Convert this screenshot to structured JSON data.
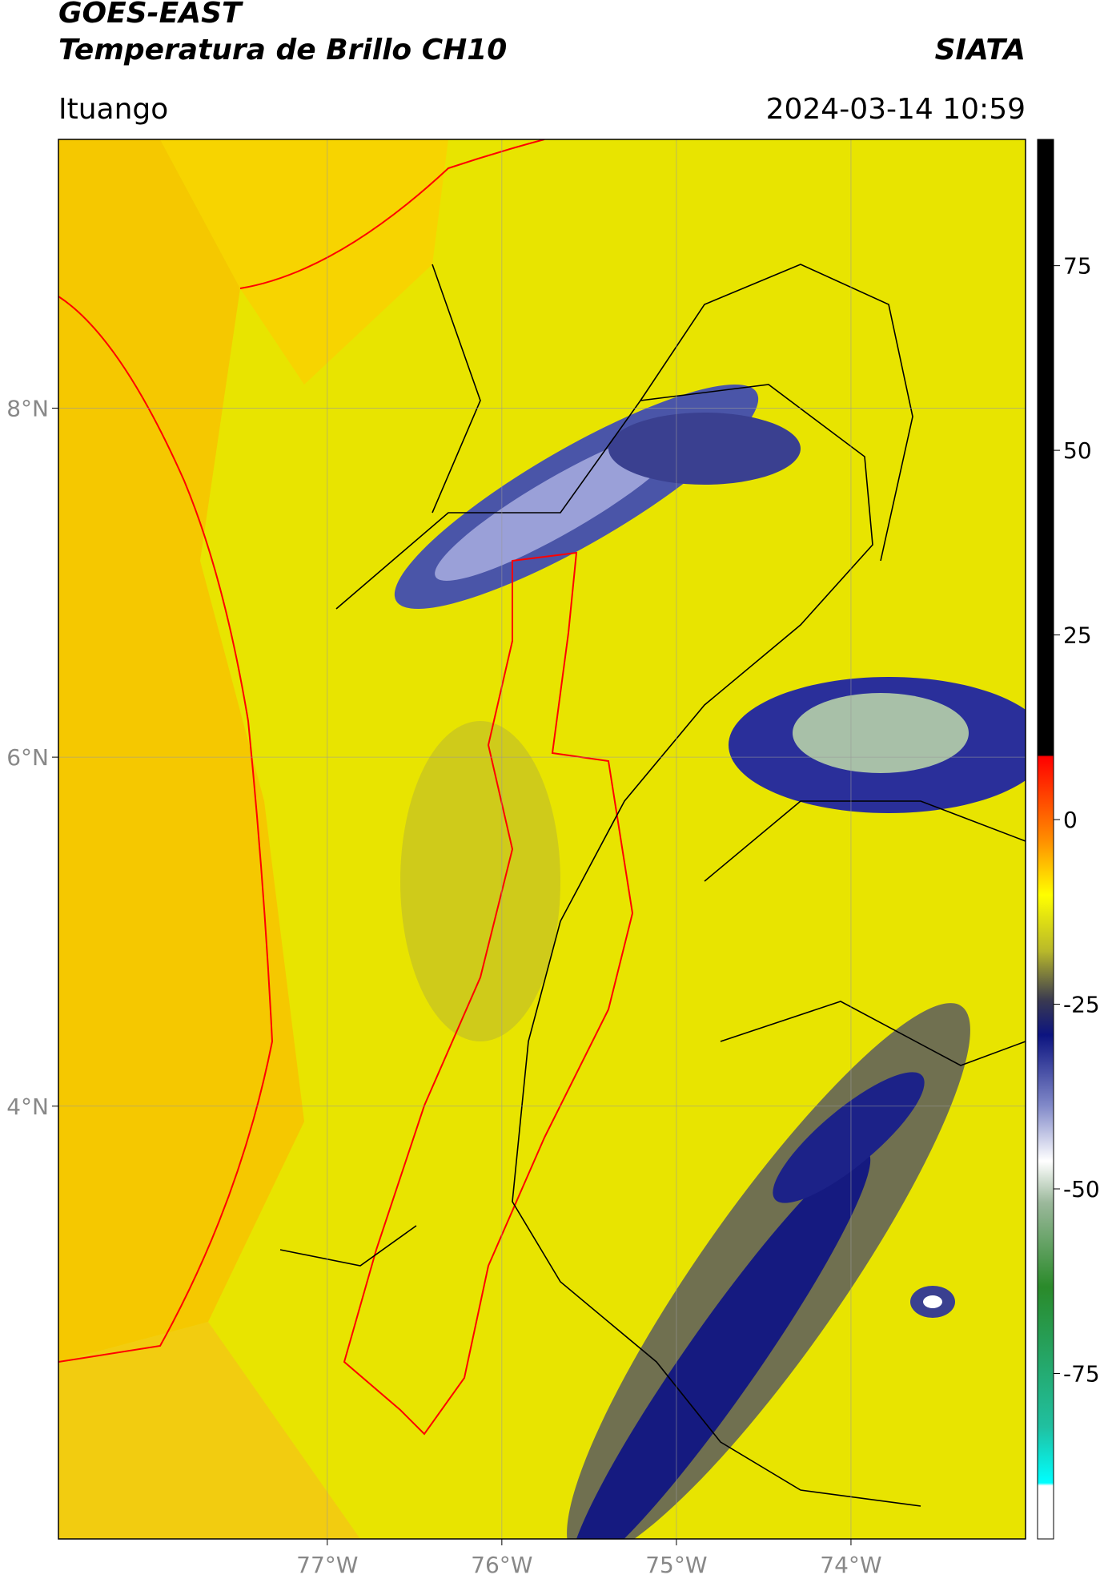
{
  "header": {
    "title_line1": "GOES-EAST",
    "title_line2": "Temperatura de Brillo CH10",
    "source": "SIATA",
    "location": "Ituango",
    "timestamp": "2024-03-14 10:59"
  },
  "chart_data": {
    "type": "map",
    "xlim": [
      -78.54,
      -73.0
    ],
    "ylim": [
      1.52,
      9.54
    ],
    "xticks": [
      {
        "value": -77,
        "label": "77°W"
      },
      {
        "value": -76,
        "label": "76°W"
      },
      {
        "value": -75,
        "label": "75°W"
      },
      {
        "value": -74,
        "label": "74°W"
      }
    ],
    "yticks": [
      {
        "value": 8,
        "label": "8°N"
      },
      {
        "value": 6,
        "label": "6°N"
      },
      {
        "value": 4,
        "label": "4°N"
      }
    ],
    "grid": true,
    "colorbar": {
      "lim": [
        -97.4,
        92.1
      ],
      "ticks": [
        75,
        50,
        25,
        0,
        -25,
        -50,
        -75
      ]
    }
  }
}
